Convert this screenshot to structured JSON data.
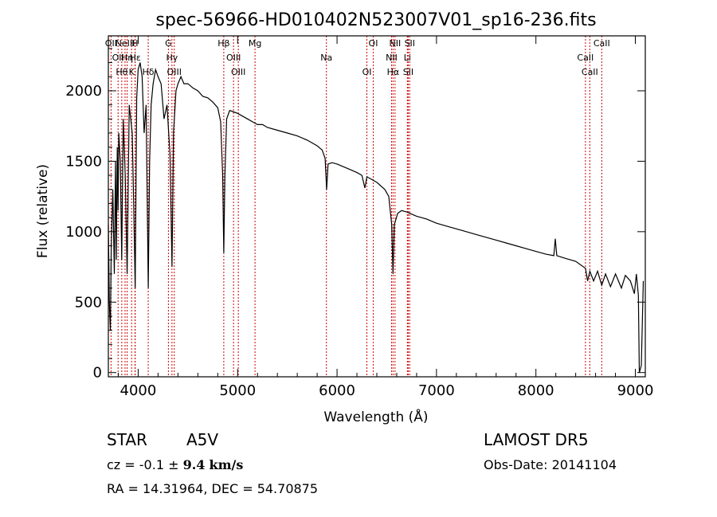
{
  "chart_data": {
    "type": "line",
    "title": "spec-56966-HD010402N523007V01_sp16-236.fits",
    "xlabel": "Wavelength (Å)",
    "ylabel": "Flux (relative)",
    "xlim": [
      3700,
      9100
    ],
    "ylim": [
      -30,
      2390
    ],
    "xticks": [
      4000,
      5000,
      6000,
      7000,
      8000,
      9000
    ],
    "yticks": [
      0,
      500,
      1000,
      1500,
      2000
    ],
    "grid": false,
    "line_color": "#000000",
    "marker_color": "#cc0000",
    "series": [
      {
        "points": [
          [
            3700,
            1050
          ],
          [
            3710,
            500
          ],
          [
            3720,
            300
          ],
          [
            3730,
            900
          ],
          [
            3745,
            1300
          ],
          [
            3760,
            700
          ],
          [
            3772,
            1500
          ],
          [
            3780,
            800
          ],
          [
            3790,
            1600
          ],
          [
            3798,
            1150
          ],
          [
            3805,
            1700
          ],
          [
            3820,
            1500
          ],
          [
            3835,
            800
          ],
          [
            3850,
            1800
          ],
          [
            3870,
            1400
          ],
          [
            3889,
            700
          ],
          [
            3910,
            1900
          ],
          [
            3940,
            1700
          ],
          [
            3955,
            1200
          ],
          [
            3970,
            600
          ],
          [
            3985,
            1950
          ],
          [
            4000,
            2150
          ],
          [
            4020,
            2200
          ],
          [
            4040,
            2100
          ],
          [
            4060,
            1700
          ],
          [
            4080,
            1900
          ],
          [
            4101,
            600
          ],
          [
            4115,
            1500
          ],
          [
            4130,
            1900
          ],
          [
            4150,
            2050
          ],
          [
            4175,
            2150
          ],
          [
            4200,
            2100
          ],
          [
            4230,
            2050
          ],
          [
            4260,
            1800
          ],
          [
            4290,
            1900
          ],
          [
            4320,
            1550
          ],
          [
            4340,
            750
          ],
          [
            4355,
            1700
          ],
          [
            4380,
            2000
          ],
          [
            4400,
            2050
          ],
          [
            4430,
            2100
          ],
          [
            4460,
            2050
          ],
          [
            4500,
            2050
          ],
          [
            4550,
            2020
          ],
          [
            4600,
            2000
          ],
          [
            4650,
            1960
          ],
          [
            4700,
            1950
          ],
          [
            4750,
            1920
          ],
          [
            4800,
            1880
          ],
          [
            4830,
            1780
          ],
          [
            4850,
            1400
          ],
          [
            4861,
            850
          ],
          [
            4872,
            1400
          ],
          [
            4890,
            1800
          ],
          [
            4920,
            1860
          ],
          [
            4960,
            1850
          ],
          [
            5000,
            1840
          ],
          [
            5050,
            1820
          ],
          [
            5100,
            1800
          ],
          [
            5150,
            1780
          ],
          [
            5200,
            1760
          ],
          [
            5250,
            1760
          ],
          [
            5300,
            1740
          ],
          [
            5400,
            1720
          ],
          [
            5500,
            1700
          ],
          [
            5600,
            1680
          ],
          [
            5700,
            1650
          ],
          [
            5800,
            1610
          ],
          [
            5850,
            1580
          ],
          [
            5880,
            1520
          ],
          [
            5895,
            1300
          ],
          [
            5910,
            1480
          ],
          [
            5950,
            1490
          ],
          [
            6000,
            1480
          ],
          [
            6100,
            1450
          ],
          [
            6200,
            1420
          ],
          [
            6250,
            1400
          ],
          [
            6280,
            1310
          ],
          [
            6300,
            1390
          ],
          [
            6400,
            1350
          ],
          [
            6480,
            1300
          ],
          [
            6520,
            1250
          ],
          [
            6550,
            1050
          ],
          [
            6563,
            700
          ],
          [
            6576,
            1050
          ],
          [
            6610,
            1130
          ],
          [
            6650,
            1150
          ],
          [
            6700,
            1140
          ],
          [
            6800,
            1110
          ],
          [
            6900,
            1090
          ],
          [
            7000,
            1060
          ],
          [
            7100,
            1040
          ],
          [
            7200,
            1020
          ],
          [
            7300,
            1000
          ],
          [
            7400,
            980
          ],
          [
            7500,
            960
          ],
          [
            7600,
            940
          ],
          [
            7700,
            920
          ],
          [
            7800,
            900
          ],
          [
            7900,
            880
          ],
          [
            8000,
            860
          ],
          [
            8100,
            840
          ],
          [
            8180,
            830
          ],
          [
            8195,
            950
          ],
          [
            8210,
            830
          ],
          [
            8300,
            810
          ],
          [
            8400,
            790
          ],
          [
            8498,
            740
          ],
          [
            8520,
            650
          ],
          [
            8542,
            720
          ],
          [
            8580,
            650
          ],
          [
            8620,
            720
          ],
          [
            8662,
            620
          ],
          [
            8700,
            700
          ],
          [
            8750,
            610
          ],
          [
            8800,
            700
          ],
          [
            8860,
            600
          ],
          [
            8900,
            690
          ],
          [
            8950,
            650
          ],
          [
            8990,
            560
          ],
          [
            9010,
            700
          ],
          [
            9030,
            550
          ],
          [
            9040,
            0
          ],
          [
            9060,
            50
          ],
          [
            9080,
            650
          ]
        ]
      }
    ],
    "lines": [
      {
        "wl": 3727,
        "labels": [
          "OII"
        ]
      },
      {
        "wl": 3798,
        "labels": [
          "OII"
        ]
      },
      {
        "wl": 3835,
        "labels": [
          "Hθ"
        ]
      },
      {
        "wl": 3868,
        "labels": [
          "NeIII"
        ]
      },
      {
        "wl": 3889,
        "labels": [
          "Hη"
        ]
      },
      {
        "wl": 3934,
        "labels": [
          "K"
        ]
      },
      {
        "wl": 3968,
        "labels": [
          "H"
        ]
      },
      {
        "wl": 3970,
        "labels": [
          "Hε"
        ]
      },
      {
        "wl": 4101,
        "labels": [
          "Hδ"
        ]
      },
      {
        "wl": 4304,
        "labels": [
          "G"
        ]
      },
      {
        "wl": 4340,
        "labels": [
          "Hγ"
        ]
      },
      {
        "wl": 4363,
        "labels": [
          "OIII"
        ]
      },
      {
        "wl": 4861,
        "labels": [
          "Hβ"
        ]
      },
      {
        "wl": 4959,
        "labels": [
          "OIII"
        ]
      },
      {
        "wl": 5007,
        "labels": [
          "OIII"
        ]
      },
      {
        "wl": 5175,
        "labels": [
          "Mg"
        ]
      },
      {
        "wl": 5893,
        "labels": [
          "Na"
        ]
      },
      {
        "wl": 6300,
        "labels": [
          "OI"
        ]
      },
      {
        "wl": 6364,
        "labels": [
          "OI"
        ]
      },
      {
        "wl": 6548,
        "labels": [
          "NII"
        ]
      },
      {
        "wl": 6563,
        "labels": [
          "Hα"
        ]
      },
      {
        "wl": 6583,
        "labels": [
          "NII"
        ]
      },
      {
        "wl": 6707,
        "labels": [
          "Li"
        ]
      },
      {
        "wl": 6716,
        "labels": [
          "SII"
        ]
      },
      {
        "wl": 6731,
        "labels": [
          "SII"
        ]
      },
      {
        "wl": 8498,
        "labels": [
          "CaII"
        ]
      },
      {
        "wl": 8542,
        "labels": [
          "CaII"
        ]
      },
      {
        "wl": 8662,
        "labels": [
          "CaII"
        ]
      }
    ]
  },
  "info": {
    "object_class": "STAR",
    "subclass": "A5V",
    "survey": "LAMOST DR5",
    "cz_label": "cz = ",
    "cz_value": "-0.1",
    "cz_pm": "±",
    "cz_err": "9.4",
    "cz_unit": "km/s",
    "obs_date": "Obs-Date: 20141104",
    "radec": "RA =  14.31964, DEC =  54.70875"
  }
}
